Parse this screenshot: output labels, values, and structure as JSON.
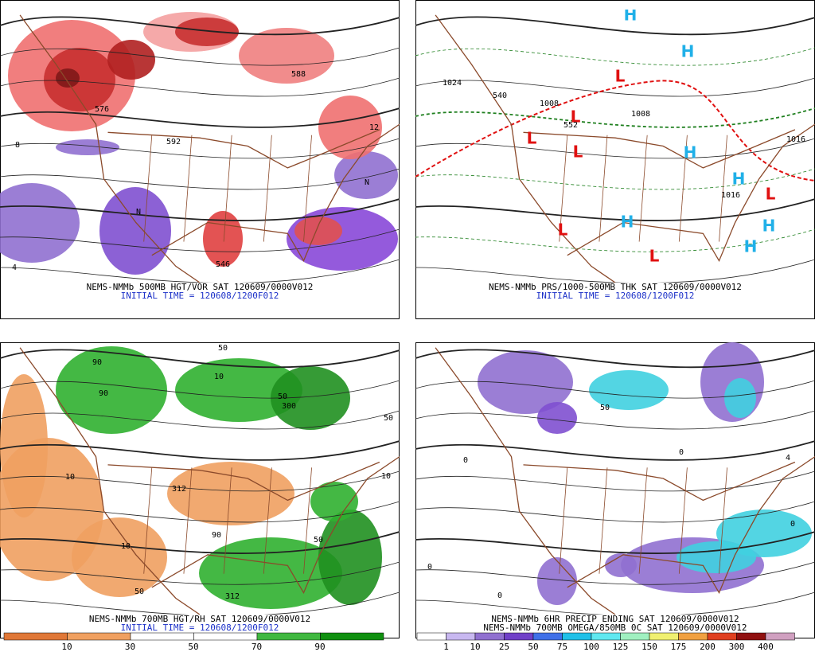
{
  "panels": [
    {
      "title": "NEMS-NMMb 500MB HGT/VOR SAT 120609/0000V012",
      "subtitle": "INITIAL TIME = 120608/1200F012",
      "labels": [
        "592",
        "588",
        "576",
        "546",
        "8",
        "12",
        "4",
        "N",
        "N"
      ]
    },
    {
      "title": "NEMS-NMMb PRS/1000-500MB THK SAT 120609/0000V012",
      "subtitle": "INITIAL TIME = 120608/1200F012",
      "labels": [
        "L",
        "L",
        "L",
        "L",
        "L",
        "L",
        "L",
        "H",
        "H",
        "H",
        "H",
        "H",
        "H",
        "H",
        "1024",
        "1008",
        "1008",
        "1016",
        "1016",
        "540",
        "552"
      ]
    },
    {
      "title": "NEMS-NMMb 700MB HGT/RH SAT 120609/0000V012",
      "subtitle": "INITIAL TIME = 120608/1200F012",
      "labels": [
        "90",
        "90",
        "50",
        "10",
        "50",
        "300",
        "312",
        "10",
        "10",
        "50",
        "90",
        "50",
        "312",
        "10",
        "50"
      ],
      "colorbar": [
        "10",
        "30",
        "50",
        "70",
        "90"
      ]
    },
    {
      "title": "NEMS-NMMb 6HR PRECIP ENDING SAT 120609/0000V012",
      "subtitle": "NEMS-NMMb 700MB OMEGA/850MB 0C SAT 120609/0000V012",
      "labels": [
        "0",
        "0",
        "0",
        "50",
        "4",
        "0",
        "0"
      ],
      "colorbar": [
        "1",
        "10",
        "25",
        "50",
        "75",
        "100",
        "125",
        "150",
        "175",
        "200",
        "300",
        "400"
      ]
    }
  ]
}
